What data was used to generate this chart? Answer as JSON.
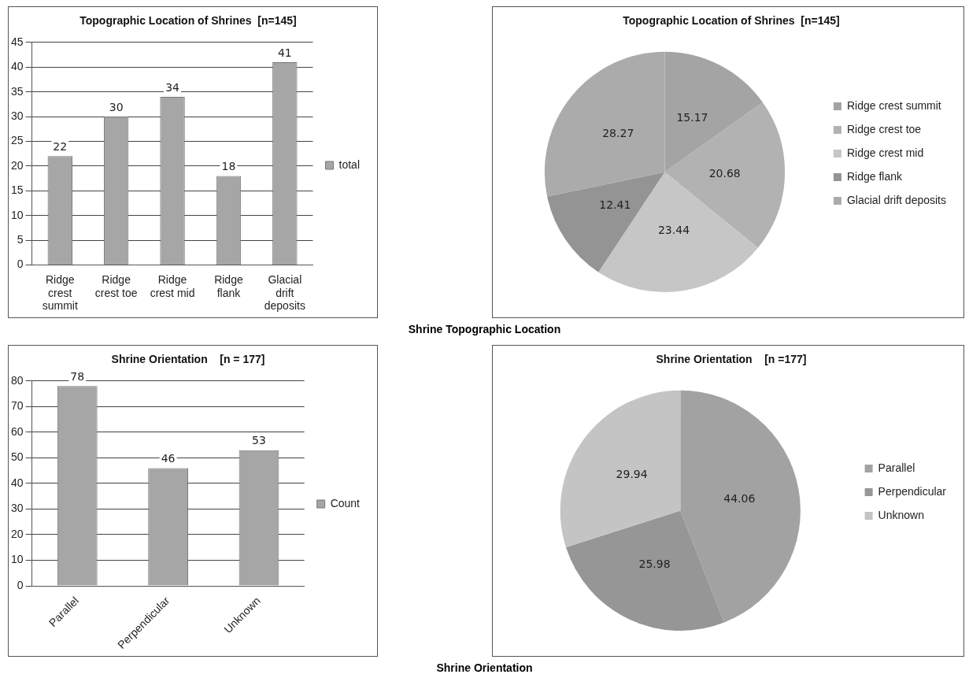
{
  "chart_data": [
    {
      "type": "bar",
      "title": "Topographic Location of Shrines  [n=145]",
      "categories": [
        "Ridge crest summit",
        "Ridge crest toe",
        "Ridge crest mid",
        "Ridge flank",
        "Glacial drift deposits"
      ],
      "series": [
        {
          "name": "total",
          "color": "#a6a6a6",
          "values": [
            22,
            30,
            34,
            18,
            41
          ]
        }
      ],
      "ylim": [
        0,
        45
      ],
      "yticks": [
        0,
        5,
        10,
        15,
        20,
        25,
        30,
        35,
        40,
        45
      ],
      "grid": "y",
      "legend": "right",
      "data_labels": true
    },
    {
      "type": "pie",
      "title": "Topographic Location of Shrines  [n=145]",
      "categories": [
        "Ridge crest summit",
        "Ridge crest toe",
        "Ridge crest mid",
        "Ridge flank",
        "Glacial drift deposits"
      ],
      "values": [
        15.17,
        20.68,
        23.44,
        12.41,
        28.27
      ],
      "colors": [
        "#a4a4a4",
        "#b2b2b2",
        "#c6c6c6",
        "#949494",
        "#ababab"
      ],
      "legend": "right",
      "data_labels": true,
      "annotations": [
        "Shrine Topographic Location"
      ]
    },
    {
      "type": "bar",
      "title": "Shrine Orientation    [n = 177]",
      "categories": [
        "Parallel",
        "Perpendicular",
        "Unknown"
      ],
      "series": [
        {
          "name": "Count",
          "color": "#a6a6a6",
          "values": [
            78,
            46,
            53
          ]
        }
      ],
      "ylim": [
        0,
        80
      ],
      "yticks": [
        0,
        10,
        20,
        30,
        40,
        50,
        60,
        70,
        80
      ],
      "grid": "y",
      "legend": "right",
      "data_labels": true
    },
    {
      "type": "pie",
      "title": "Shrine Orientation    [n =177]",
      "categories": [
        "Parallel",
        "Perpendicular",
        "Unknown"
      ],
      "values": [
        44.06,
        25.98,
        29.94
      ],
      "colors": [
        "#a2a2a2",
        "#969696",
        "#c4c4c4"
      ],
      "legend": "right",
      "data_labels": true,
      "annotations": [
        "Shrine Orientation"
      ]
    }
  ]
}
